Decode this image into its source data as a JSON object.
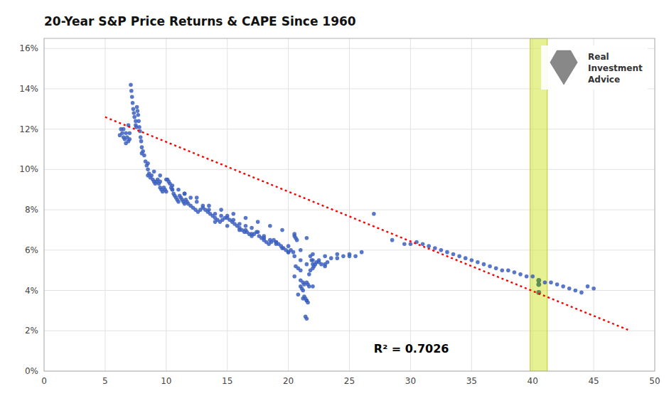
{
  "chart_data": {
    "type": "scatter",
    "title": "20-Year S&P Price Returns & CAPE Since 1960",
    "xlim": [
      0,
      50
    ],
    "ylim": [
      0.0,
      0.165
    ],
    "xticks": [
      0,
      5,
      10,
      15,
      20,
      25,
      30,
      35,
      40,
      45,
      50
    ],
    "yticks": [
      {
        "value": 0.0,
        "label": "0%"
      },
      {
        "value": 0.02,
        "label": "2%"
      },
      {
        "value": 0.04,
        "label": "4%"
      },
      {
        "value": 0.06,
        "label": "6%"
      },
      {
        "value": 0.08,
        "label": "8%"
      },
      {
        "value": 0.1,
        "label": "10%"
      },
      {
        "value": 0.12,
        "label": "12%"
      },
      {
        "value": 0.14,
        "label": "14%"
      },
      {
        "value": 0.16,
        "label": "16%"
      }
    ],
    "grid": true,
    "highlight_band": {
      "xmin": 39.8,
      "xmax": 41.2,
      "color": "#d4e84a"
    },
    "series": [
      {
        "type": "scatter",
        "marker": "circle",
        "color": "#3b5fc0",
        "x": [
          6.2,
          6.3,
          6.4,
          6.5,
          6.6,
          6.7,
          6.8,
          6.9,
          7.0,
          7.0,
          7.1,
          7.15,
          7.2,
          7.25,
          7.3,
          7.35,
          7.4,
          7.5,
          7.55,
          7.6,
          7.65,
          7.7,
          7.75,
          7.8,
          7.85,
          7.9,
          7.95,
          6.5,
          6.7,
          6.9,
          8.0,
          8.1,
          8.2,
          8.3,
          8.4,
          8.5,
          8.6,
          8.7,
          8.8,
          8.9,
          9.0,
          9.1,
          9.2,
          9.3,
          9.4,
          9.5,
          9.6,
          9.7,
          9.8,
          9.9,
          10.0,
          10.1,
          10.2,
          10.3,
          10.4,
          10.5,
          10.6,
          10.7,
          10.8,
          10.9,
          11.0,
          11.1,
          11.2,
          11.3,
          11.4,
          11.5,
          11.6,
          11.7,
          11.8,
          12.0,
          12.2,
          12.4,
          12.6,
          12.8,
          13.0,
          13.2,
          13.4,
          13.6,
          13.8,
          14.0,
          14.2,
          14.4,
          14.6,
          14.8,
          15.0,
          15.2,
          15.4,
          15.6,
          15.8,
          16.0,
          16.2,
          16.4,
          16.5,
          16.6,
          16.8,
          17.0,
          17.2,
          17.4,
          17.6,
          17.8,
          18.0,
          18.2,
          18.4,
          18.6,
          18.8,
          19.0,
          19.2,
          19.4,
          19.6,
          19.8,
          20.0,
          20.2,
          20.4,
          20.5,
          20.6,
          20.7,
          20.6,
          20.8,
          21.0,
          21.0,
          21.1,
          21.2,
          21.2,
          21.3,
          21.3,
          21.4,
          21.4,
          21.5,
          21.5,
          21.6,
          21.6,
          21.7,
          21.7,
          21.8,
          21.8,
          21.9,
          22.0,
          22.0,
          22.1,
          22.2,
          22.3,
          22.5,
          22.7,
          23.0,
          23.2,
          23.5,
          24.0,
          24.5,
          25.0,
          25.5,
          26.0,
          27.0,
          28.5,
          29.5,
          30.0,
          30.5,
          31.0,
          31.5,
          32.0,
          32.5,
          33.0,
          33.5,
          34.0,
          34.5,
          35.0,
          35.5,
          36.0,
          36.5,
          37.0,
          37.5,
          38.0,
          38.5,
          39.0,
          39.5,
          40.0,
          41.0,
          41.5,
          42.0,
          42.5,
          43.0,
          43.5,
          44.0,
          44.5,
          45.0,
          7.5,
          8.0,
          8.5,
          9.0,
          9.5,
          10.0,
          10.5,
          11.0,
          11.5,
          12.0,
          12.5,
          13.0,
          13.5,
          14.0,
          14.5,
          15.0,
          15.5,
          16.0,
          16.5,
          17.0,
          17.5,
          18.0,
          18.5,
          19.0,
          19.5,
          20.0,
          20.5,
          21.0,
          21.5,
          22.0,
          22.5,
          23.0,
          8.5,
          9.5,
          10.5,
          11.5,
          12.5,
          13.5,
          14.5,
          15.5,
          16.5,
          17.5,
          18.5,
          19.5,
          20.5,
          21.5,
          20.5,
          21.0,
          21.5,
          22.0,
          20.8,
          21.2,
          21.5,
          14.0,
          15.0,
          16.0,
          17.0,
          18.0,
          19.0,
          20.0,
          21.0,
          22.0,
          23.0,
          24.0,
          25.0
        ],
        "values": [
          0.117,
          0.12,
          0.118,
          0.116,
          0.115,
          0.113,
          0.116,
          0.114,
          0.115,
          0.118,
          0.142,
          0.139,
          0.136,
          0.133,
          0.13,
          0.128,
          0.126,
          0.124,
          0.121,
          0.131,
          0.129,
          0.127,
          0.124,
          0.121,
          0.119,
          0.116,
          0.114,
          0.12,
          0.118,
          0.122,
          0.111,
          0.109,
          0.107,
          0.104,
          0.102,
          0.1,
          0.098,
          0.096,
          0.097,
          0.095,
          0.094,
          0.093,
          0.094,
          0.095,
          0.093,
          0.091,
          0.09,
          0.089,
          0.091,
          0.09,
          0.089,
          0.095,
          0.094,
          0.093,
          0.091,
          0.09,
          0.088,
          0.087,
          0.086,
          0.085,
          0.084,
          0.087,
          0.086,
          0.085,
          0.084,
          0.083,
          0.085,
          0.084,
          0.083,
          0.082,
          0.081,
          0.08,
          0.079,
          0.08,
          0.081,
          0.08,
          0.079,
          0.078,
          0.077,
          0.076,
          0.075,
          0.074,
          0.075,
          0.076,
          0.077,
          0.075,
          0.074,
          0.073,
          0.072,
          0.071,
          0.07,
          0.069,
          0.07,
          0.069,
          0.068,
          0.067,
          0.068,
          0.069,
          0.067,
          0.066,
          0.065,
          0.064,
          0.063,
          0.064,
          0.065,
          0.064,
          0.063,
          0.062,
          0.061,
          0.06,
          0.059,
          0.06,
          0.059,
          0.067,
          0.066,
          0.065,
          0.052,
          0.051,
          0.05,
          0.042,
          0.041,
          0.04,
          0.044,
          0.043,
          0.037,
          0.036,
          0.027,
          0.026,
          0.035,
          0.034,
          0.043,
          0.042,
          0.048,
          0.05,
          0.057,
          0.055,
          0.053,
          0.051,
          0.052,
          0.053,
          0.054,
          0.055,
          0.053,
          0.052,
          0.054,
          0.056,
          0.058,
          0.057,
          0.058,
          0.057,
          0.059,
          0.078,
          0.065,
          0.063,
          0.063,
          0.064,
          0.063,
          0.062,
          0.061,
          0.06,
          0.059,
          0.058,
          0.057,
          0.056,
          0.055,
          0.054,
          0.053,
          0.052,
          0.051,
          0.05,
          0.05,
          0.049,
          0.048,
          0.047,
          0.047,
          0.044,
          0.044,
          0.043,
          0.042,
          0.041,
          0.04,
          0.039,
          0.042,
          0.041,
          0.122,
          0.108,
          0.103,
          0.099,
          0.097,
          0.095,
          0.092,
          0.09,
          0.088,
          0.086,
          0.084,
          0.082,
          0.08,
          0.078,
          0.077,
          0.076,
          0.075,
          0.073,
          0.072,
          0.071,
          0.069,
          0.067,
          0.065,
          0.063,
          0.061,
          0.059,
          0.057,
          0.055,
          0.053,
          0.055,
          0.054,
          0.053,
          0.097,
          0.094,
          0.09,
          0.088,
          0.086,
          0.082,
          0.08,
          0.078,
          0.076,
          0.074,
          0.072,
          0.07,
          0.068,
          0.066,
          0.047,
          0.045,
          0.044,
          0.042,
          0.038,
          0.036,
          0.035,
          0.074,
          0.072,
          0.07,
          0.068,
          0.066,
          0.064,
          0.062,
          0.06,
          0.058,
          0.057,
          0.056,
          0.057
        ]
      },
      {
        "type": "scatter",
        "marker": "circle",
        "color": "#4a7a4a",
        "x": [
          40.5,
          40.5,
          40.5
        ],
        "values": [
          0.039,
          0.043,
          0.045
        ]
      },
      {
        "type": "line",
        "line_style": "dotted",
        "color": "#ff0000",
        "x": [
          5,
          48
        ],
        "values": [
          0.126,
          0.02
        ]
      }
    ],
    "annotations": [
      {
        "text": "R² = 0.7026",
        "x": 27,
        "y": 0.008
      },
      {
        "text": "Real\nInvestment\nAdvice"
      }
    ]
  }
}
